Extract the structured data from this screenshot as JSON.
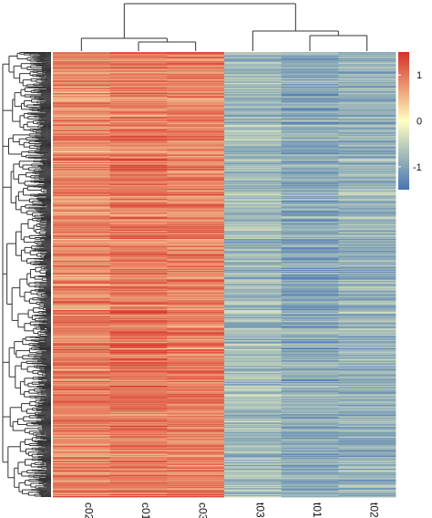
{
  "chart_data": {
    "type": "heatmap",
    "title": "",
    "columns": [
      "c02",
      "c01",
      "c03",
      "t03",
      "t01",
      "t02"
    ],
    "column_dendrogram": {
      "groups": [
        [
          "c02",
          "c01",
          "c03"
        ],
        [
          "t03",
          "t01",
          "t02"
        ]
      ],
      "subgroups": [
        [
          "c01",
          "c03"
        ],
        [
          "t01",
          "t02"
        ]
      ]
    },
    "row_dendrogram": true,
    "row_count_estimate": 500,
    "column_mean_levels": {
      "c02": 0.85,
      "c01": 0.95,
      "c03": 0.9,
      "t03": -0.75,
      "t01": -0.95,
      "t02": -0.85
    },
    "color_scale": {
      "low": "#4575b4",
      "mid": "#ffffbf",
      "high": "#d73027",
      "range": [
        -1.5,
        1.5
      ]
    },
    "legend": {
      "position": "right",
      "ticks": [
        "1",
        "0",
        "-1"
      ],
      "tick_values": [
        1,
        0,
        -1
      ]
    }
  }
}
